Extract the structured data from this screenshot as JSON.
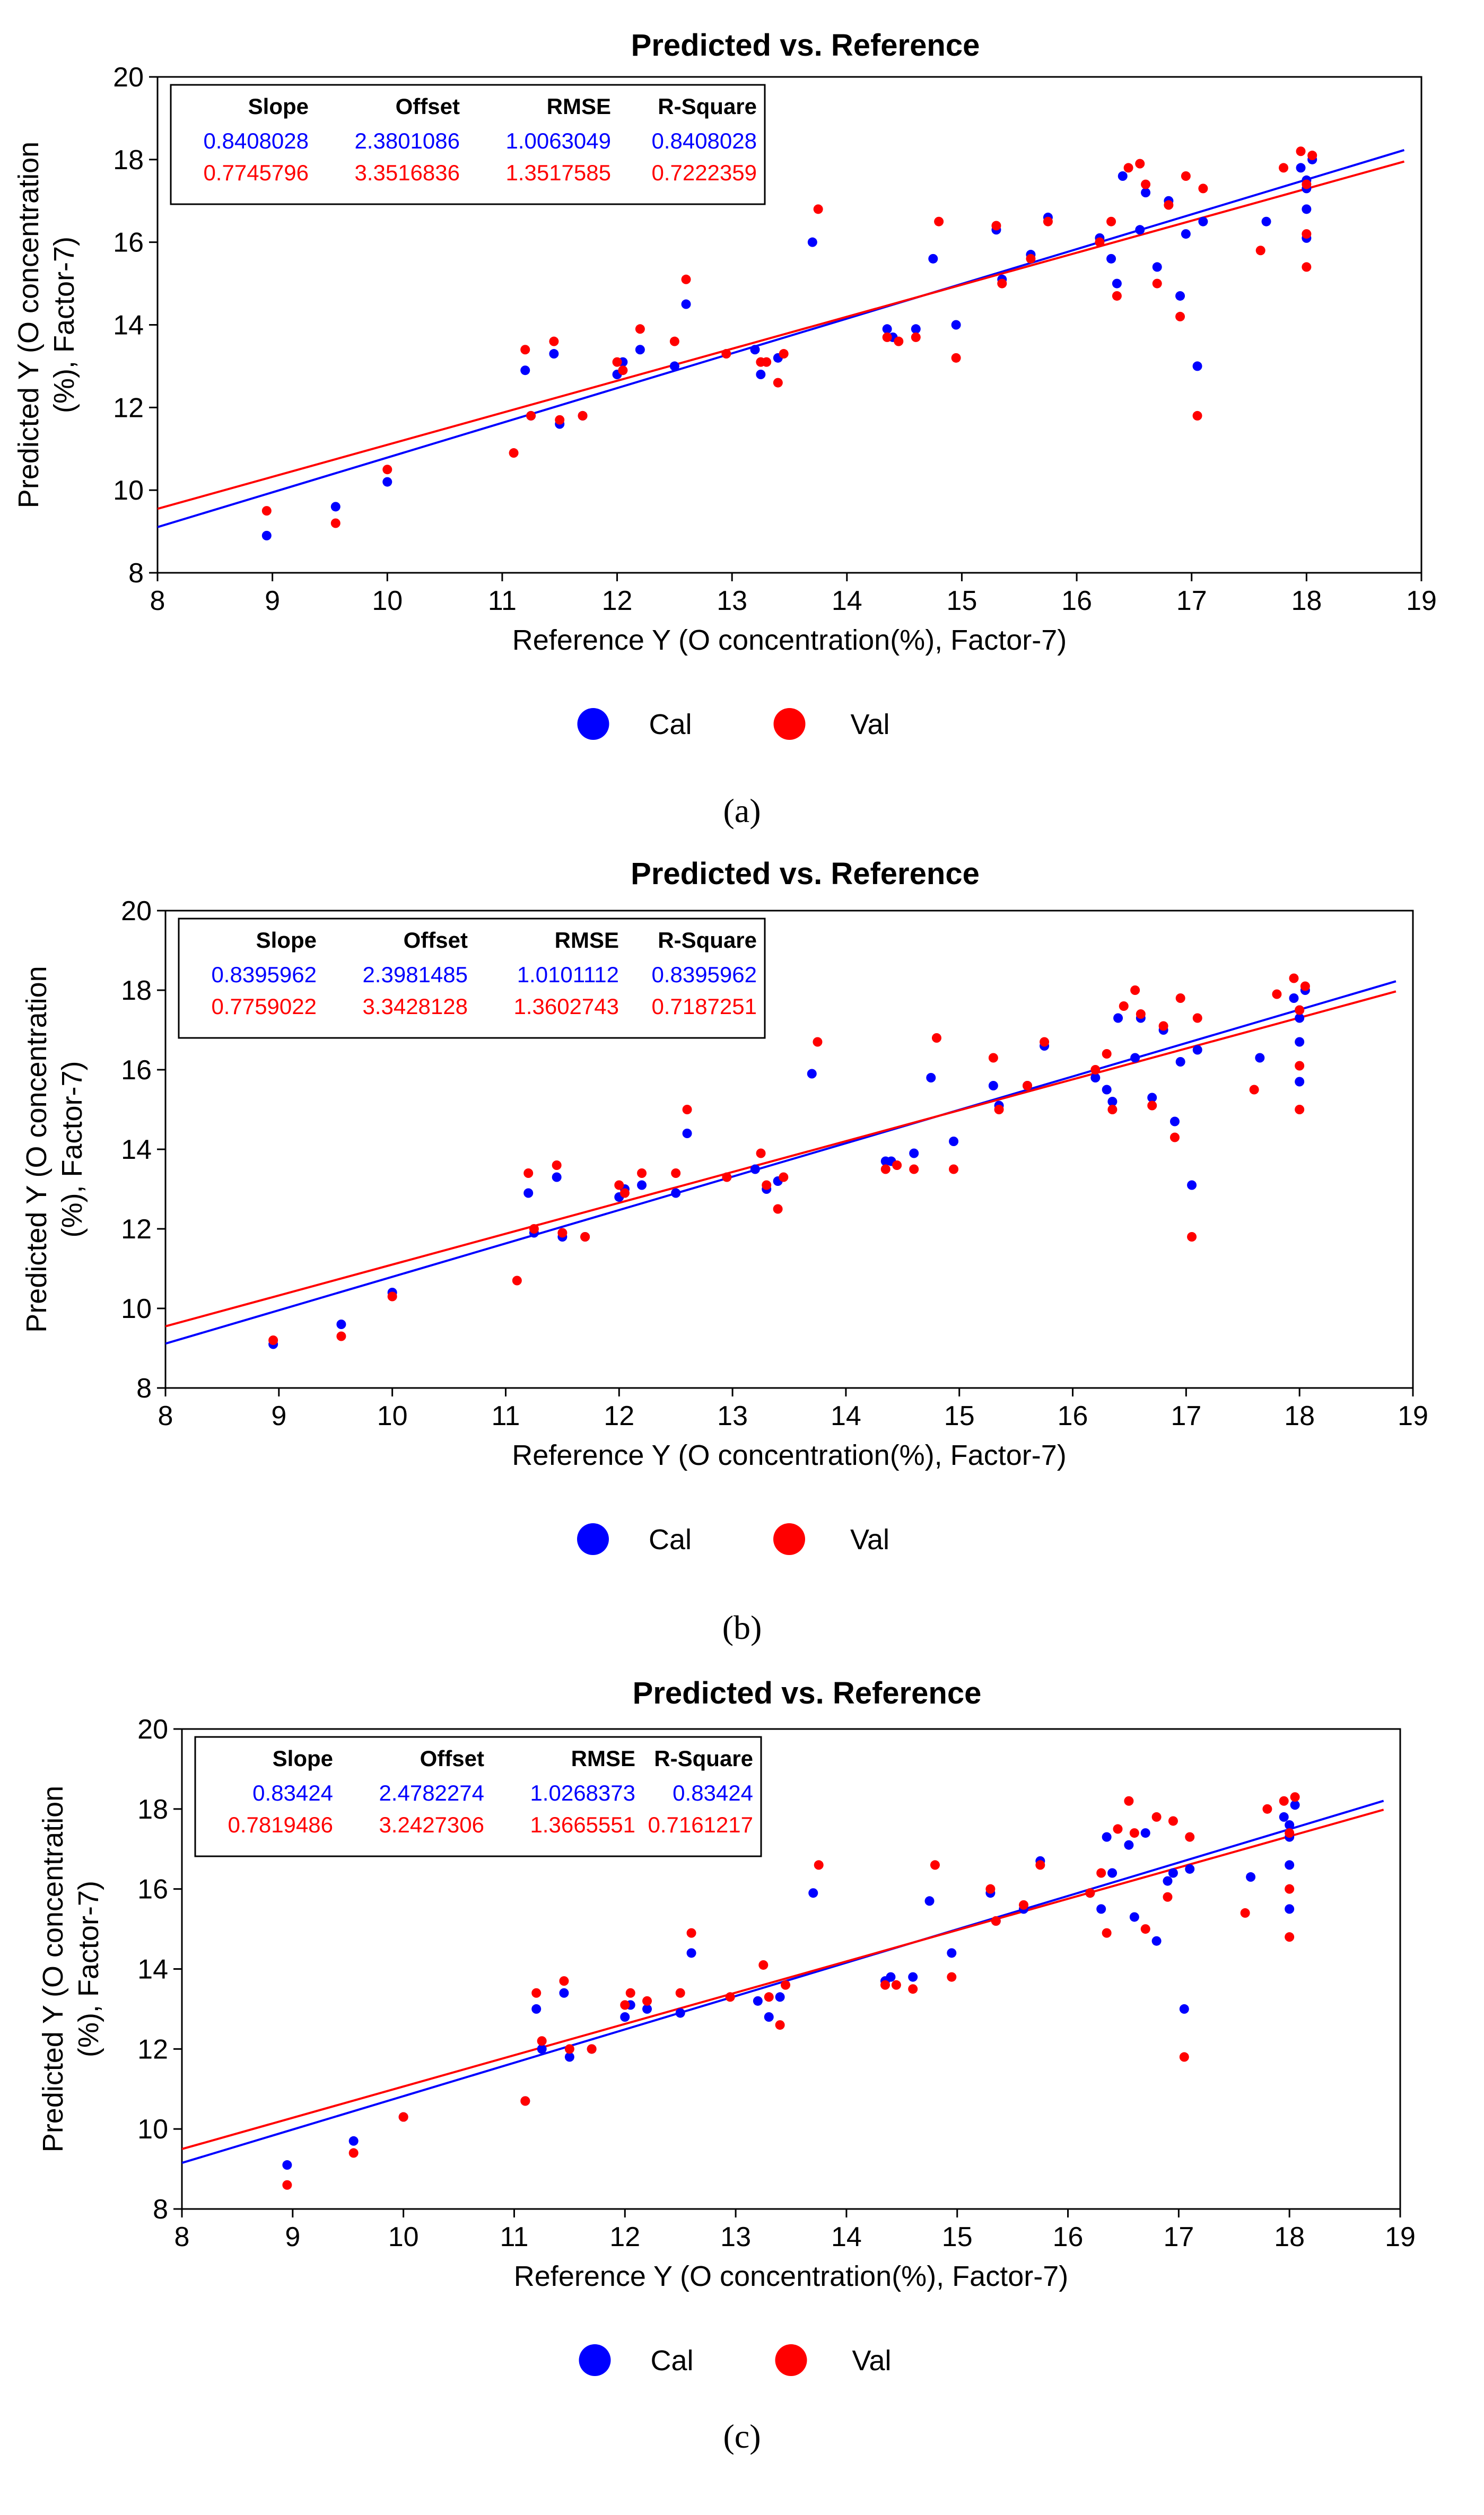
{
  "colors": {
    "cal": "#0000ff",
    "val": "#ff0000"
  },
  "chart_data": [
    {
      "type": "scatter",
      "panel_label": "(a)",
      "title": "Predicted vs. Reference",
      "xlabel": "Reference Y (O concentration(%), Factor-7)",
      "ylabel_line1": "Predicted Y (O concentration",
      "ylabel_line2": "(%), Factor-7)",
      "xlim": [
        8,
        19
      ],
      "ylim": [
        8,
        20
      ],
      "xticks": [
        8,
        9,
        10,
        11,
        12,
        13,
        14,
        15,
        16,
        17,
        18,
        19
      ],
      "yticks": [
        8,
        10,
        12,
        14,
        16,
        18,
        20
      ],
      "legend": [
        "Cal",
        "Val"
      ],
      "stats": {
        "headers": [
          "Slope",
          "Offset",
          "RMSE",
          "R-Square"
        ],
        "cal": [
          "0.8408028",
          "2.3801086",
          "1.0063049",
          "0.8408028"
        ],
        "val": [
          "0.7745796",
          "3.3516836",
          "1.3517585",
          "0.7222359"
        ]
      },
      "fit_lines": {
        "cal": {
          "slope": 0.8408028,
          "offset": 2.3801086
        },
        "val": {
          "slope": 0.7745796,
          "offset": 3.3516836
        }
      },
      "series": [
        {
          "name": "Cal",
          "x": [
            8.95,
            9.55,
            10.0,
            11.2,
            11.25,
            11.45,
            11.5,
            11.7,
            12.0,
            12.05,
            12.2,
            12.5,
            12.6,
            13.2,
            13.25,
            13.4,
            13.7,
            14.35,
            14.4,
            14.6,
            14.75,
            14.95,
            15.3,
            15.35,
            15.6,
            15.75,
            16.2,
            16.3,
            16.35,
            16.4,
            16.55,
            16.6,
            16.7,
            16.8,
            16.9,
            16.95,
            17.05,
            17.1,
            17.65,
            17.95,
            18.0,
            18.0,
            18.0,
            18.0,
            18.05
          ],
          "y": [
            8.9,
            9.6,
            10.2,
            12.9,
            11.8,
            13.3,
            11.6,
            11.8,
            12.8,
            13.1,
            13.4,
            13.0,
            14.5,
            13.4,
            12.8,
            13.2,
            16.0,
            13.9,
            13.7,
            13.9,
            15.6,
            14.0,
            16.3,
            15.1,
            15.7,
            16.6,
            16.1,
            15.6,
            15.0,
            17.6,
            16.3,
            17.2,
            15.4,
            17.0,
            14.7,
            16.2,
            13.0,
            16.5,
            16.5,
            17.8,
            16.8,
            16.1,
            17.3,
            17.5,
            18.0
          ]
        },
        {
          "name": "Val",
          "x": [
            8.95,
            9.55,
            10.0,
            11.1,
            11.2,
            11.25,
            11.45,
            11.5,
            11.7,
            12.0,
            12.05,
            12.2,
            12.5,
            12.6,
            12.95,
            13.25,
            13.3,
            13.4,
            13.45,
            13.75,
            14.35,
            14.45,
            14.6,
            14.8,
            14.95,
            15.3,
            15.35,
            15.6,
            15.75,
            16.2,
            16.3,
            16.35,
            16.45,
            16.55,
            16.6,
            16.7,
            16.8,
            16.9,
            16.95,
            17.05,
            17.1,
            17.6,
            17.8,
            17.95,
            18.0,
            18.0,
            18.0,
            18.05
          ],
          "y": [
            9.5,
            9.2,
            10.5,
            10.9,
            13.4,
            11.8,
            13.6,
            11.7,
            11.8,
            13.1,
            12.9,
            13.9,
            13.6,
            15.1,
            13.3,
            13.1,
            13.1,
            12.6,
            13.3,
            16.8,
            13.7,
            13.6,
            13.7,
            16.5,
            13.2,
            16.4,
            15.0,
            15.6,
            16.5,
            16.0,
            16.5,
            14.7,
            17.8,
            17.9,
            17.4,
            15.0,
            16.9,
            14.2,
            17.6,
            11.8,
            17.3,
            15.8,
            17.8,
            18.2,
            17.4,
            16.2,
            15.4,
            18.1
          ]
        }
      ]
    },
    {
      "type": "scatter",
      "panel_label": "(b)",
      "title": "Predicted vs. Reference",
      "xlabel": "Reference Y (O concentration(%), Factor-7)",
      "ylabel_line1": "Predicted Y (O concentration",
      "ylabel_line2": "(%), Factor-7)",
      "xlim": [
        8,
        19
      ],
      "ylim": [
        8,
        20
      ],
      "xticks": [
        8,
        9,
        10,
        11,
        12,
        13,
        14,
        15,
        16,
        17,
        18,
        19
      ],
      "yticks": [
        8,
        10,
        12,
        14,
        16,
        18,
        20
      ],
      "legend": [
        "Cal",
        "Val"
      ],
      "stats": {
        "headers": [
          "Slope",
          "Offset",
          "RMSE",
          "R-Square"
        ],
        "cal": [
          "0.8395962",
          "2.3981485",
          "1.0101112",
          "0.8395962"
        ],
        "val": [
          "0.7759022",
          "3.3428128",
          "1.3602743",
          "0.7187251"
        ]
      },
      "fit_lines": {
        "cal": {
          "slope": 0.8395962,
          "offset": 2.3981485
        },
        "val": {
          "slope": 0.7759022,
          "offset": 3.3428128
        }
      },
      "series": [
        {
          "name": "Cal",
          "x": [
            8.95,
            9.55,
            10.0,
            11.2,
            11.25,
            11.45,
            11.5,
            11.7,
            12.0,
            12.05,
            12.2,
            12.5,
            12.6,
            13.2,
            13.3,
            13.4,
            13.7,
            14.35,
            14.4,
            14.6,
            14.75,
            14.95,
            15.3,
            15.35,
            15.6,
            15.75,
            16.2,
            16.3,
            16.35,
            16.4,
            16.55,
            16.6,
            16.7,
            16.8,
            16.9,
            16.95,
            17.05,
            17.1,
            17.65,
            17.95,
            18.0,
            18.0,
            18.0,
            18.0,
            18.05
          ],
          "y": [
            9.1,
            9.6,
            10.4,
            12.9,
            11.9,
            13.3,
            11.8,
            11.8,
            12.8,
            13.0,
            13.1,
            12.9,
            14.4,
            13.5,
            13.0,
            13.2,
            15.9,
            13.7,
            13.7,
            13.9,
            15.8,
            14.2,
            15.6,
            15.1,
            15.6,
            16.6,
            15.8,
            15.5,
            15.2,
            17.3,
            16.3,
            17.3,
            15.3,
            17.0,
            14.7,
            16.2,
            13.1,
            16.5,
            16.3,
            17.8,
            16.7,
            15.7,
            17.3,
            17.5,
            18.0
          ]
        },
        {
          "name": "Val",
          "x": [
            8.95,
            9.55,
            10.0,
            11.1,
            11.2,
            11.25,
            11.45,
            11.5,
            11.7,
            12.0,
            12.05,
            12.2,
            12.5,
            12.6,
            12.95,
            13.25,
            13.3,
            13.4,
            13.45,
            13.75,
            14.35,
            14.45,
            14.6,
            14.8,
            14.95,
            15.3,
            15.35,
            15.6,
            15.75,
            16.2,
            16.3,
            16.35,
            16.45,
            16.55,
            16.6,
            16.7,
            16.8,
            16.9,
            16.95,
            17.05,
            17.1,
            17.6,
            17.8,
            17.95,
            18.0,
            18.0,
            18.0,
            18.05
          ],
          "y": [
            9.2,
            9.3,
            10.3,
            10.7,
            13.4,
            12.0,
            13.6,
            11.9,
            11.8,
            13.1,
            12.9,
            13.4,
            13.4,
            15.0,
            13.3,
            13.9,
            13.1,
            12.5,
            13.3,
            16.7,
            13.5,
            13.6,
            13.5,
            16.8,
            13.5,
            16.3,
            15.0,
            15.6,
            16.7,
            16.0,
            16.4,
            15.0,
            17.6,
            18.0,
            17.4,
            15.1,
            17.1,
            14.3,
            17.8,
            11.8,
            17.3,
            15.5,
            17.9,
            18.3,
            17.5,
            16.1,
            15.0,
            18.1
          ]
        }
      ]
    },
    {
      "type": "scatter",
      "panel_label": "(c)",
      "title": "Predicted vs. Reference",
      "xlabel": "Reference Y (O concentration(%), Factor-7)",
      "ylabel_line1": "Predicted Y (O concentration",
      "ylabel_line2": "(%), Factor-7)",
      "xlim": [
        8,
        19
      ],
      "ylim": [
        8,
        20
      ],
      "xticks": [
        8,
        9,
        10,
        11,
        12,
        13,
        14,
        15,
        16,
        17,
        18,
        19
      ],
      "yticks": [
        8,
        10,
        12,
        14,
        16,
        18,
        20
      ],
      "legend": [
        "Cal",
        "Val"
      ],
      "stats": {
        "headers": [
          "Slope",
          "Offset",
          "RMSE",
          "R-Square"
        ],
        "cal": [
          "0.83424",
          "2.4782274",
          "1.0268373",
          "0.83424"
        ],
        "val": [
          "0.7819486",
          "3.2427306",
          "1.3665551",
          "0.7161217"
        ]
      },
      "fit_lines": {
        "cal": {
          "slope": 0.83424,
          "offset": 2.4782274
        },
        "val": {
          "slope": 0.7819486,
          "offset": 3.2427306
        }
      },
      "series": [
        {
          "name": "Cal",
          "x": [
            8.95,
            9.55,
            10.0,
            11.1,
            11.2,
            11.25,
            11.45,
            11.5,
            11.7,
            12.0,
            12.05,
            12.2,
            12.5,
            12.6,
            13.2,
            13.3,
            13.4,
            13.7,
            14.35,
            14.4,
            14.6,
            14.75,
            14.95,
            15.3,
            15.35,
            15.6,
            15.75,
            16.2,
            16.3,
            16.35,
            16.4,
            16.55,
            16.6,
            16.7,
            16.8,
            16.9,
            16.95,
            17.05,
            17.1,
            17.65,
            17.95,
            18.0,
            18.0,
            18.0,
            18.0,
            18.05
          ],
          "y": [
            9.1,
            9.7,
            10.3,
            10.7,
            13.0,
            12.0,
            13.4,
            11.8,
            12.0,
            12.8,
            13.1,
            13.0,
            12.9,
            14.4,
            13.2,
            12.8,
            13.3,
            15.9,
            13.7,
            13.8,
            13.8,
            15.7,
            14.4,
            15.9,
            15.2,
            15.5,
            16.7,
            15.9,
            15.5,
            17.3,
            16.4,
            17.1,
            15.3,
            17.4,
            14.7,
            16.2,
            16.4,
            13.0,
            16.5,
            16.3,
            17.8,
            16.6,
            15.5,
            17.3,
            17.6,
            18.1
          ]
        },
        {
          "name": "Val",
          "x": [
            8.95,
            9.55,
            10.0,
            11.1,
            11.2,
            11.25,
            11.45,
            11.5,
            11.7,
            12.0,
            12.05,
            12.2,
            12.5,
            12.6,
            12.95,
            13.25,
            13.3,
            13.4,
            13.45,
            13.75,
            14.35,
            14.45,
            14.6,
            14.8,
            14.95,
            15.3,
            15.35,
            15.6,
            15.75,
            16.2,
            16.3,
            16.35,
            16.45,
            16.55,
            16.6,
            16.7,
            16.8,
            16.9,
            16.95,
            17.05,
            17.1,
            17.6,
            17.8,
            17.95,
            18.0,
            18.0,
            18.0,
            18.05
          ],
          "y": [
            8.6,
            9.4,
            10.3,
            10.7,
            13.4,
            12.2,
            13.7,
            12.0,
            12.0,
            13.1,
            13.4,
            13.2,
            13.4,
            14.9,
            13.3,
            14.1,
            13.3,
            12.6,
            13.6,
            16.6,
            13.6,
            13.6,
            13.5,
            16.6,
            13.8,
            16.0,
            15.2,
            15.6,
            16.6,
            15.9,
            16.4,
            14.9,
            17.5,
            18.2,
            17.4,
            15.0,
            17.8,
            15.8,
            17.7,
            11.8,
            17.3,
            15.4,
            18.0,
            18.2,
            17.4,
            16.0,
            14.8,
            18.3
          ]
        }
      ]
    }
  ]
}
